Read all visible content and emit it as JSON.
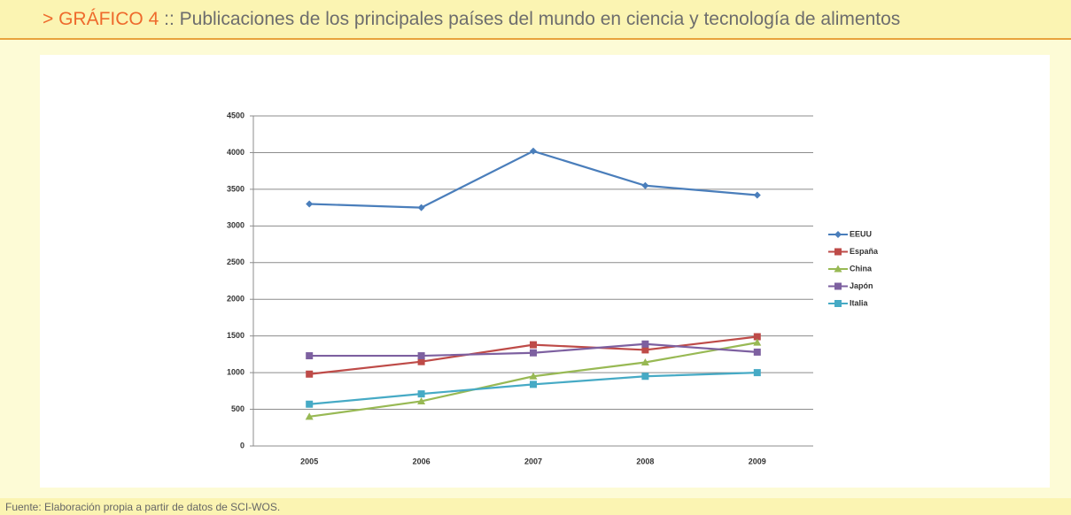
{
  "header": {
    "label": "> GRÁFICO 4",
    "title": ":: Publicaciones de los principales países del mundo en ciencia y tecnología de alimentos"
  },
  "source": "Fuente: Elaboración propia a partir de datos de SCI-WOS.",
  "chart_data": {
    "type": "line",
    "categories": [
      "2005",
      "2006",
      "2007",
      "2008",
      "2009"
    ],
    "series": [
      {
        "name": "EEUU",
        "color": "#4a7ebb",
        "marker": "diamond",
        "values": [
          3300,
          3250,
          4020,
          3550,
          3420
        ]
      },
      {
        "name": "España",
        "color": "#be4b48",
        "marker": "square",
        "values": [
          980,
          1150,
          1380,
          1310,
          1490
        ]
      },
      {
        "name": "China",
        "color": "#98b954",
        "marker": "triangle",
        "values": [
          400,
          610,
          950,
          1140,
          1410
        ]
      },
      {
        "name": "Japón",
        "color": "#7d60a0",
        "marker": "square",
        "values": [
          1230,
          1230,
          1270,
          1390,
          1280
        ]
      },
      {
        "name": "Italia",
        "color": "#46aac5",
        "marker": "square",
        "values": [
          570,
          710,
          840,
          950,
          1000
        ]
      }
    ],
    "ylim": [
      0,
      4500
    ],
    "yticks": [
      0,
      500,
      1000,
      1500,
      2000,
      2500,
      3000,
      3500,
      4000,
      4500
    ],
    "grid": true,
    "legend": "right"
  }
}
